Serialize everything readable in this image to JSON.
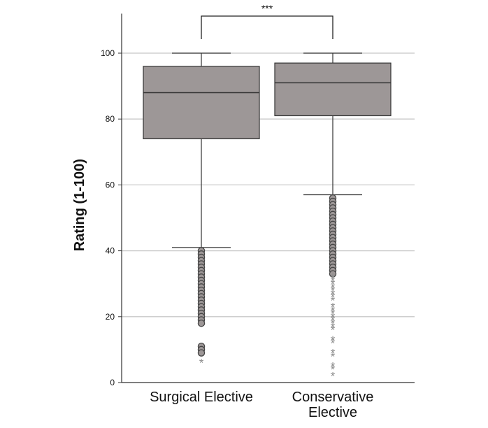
{
  "chart_data": {
    "type": "box",
    "title": "",
    "xlabel": "",
    "ylabel": "Rating (1-100)",
    "ylim": [
      0,
      112
    ],
    "yticks": [
      0,
      20,
      40,
      60,
      80,
      100
    ],
    "grid": {
      "horizontal": true,
      "vertical": false
    },
    "categories": [
      "Surgical Elective",
      "Conservative Elective"
    ],
    "category_labels": [
      [
        "Surgical Elective"
      ],
      [
        "Conservative",
        "Elective"
      ]
    ],
    "box_color": "#9d9797",
    "outlier_color": "#9d9797",
    "extreme_color": "#8c8c8c",
    "boxes": [
      {
        "category": "Surgical Elective",
        "whisker_low": 41,
        "q1": 74,
        "median": 88,
        "q3": 96,
        "whisker_high": 100,
        "outliers": [
          40,
          39,
          38,
          37,
          36,
          35,
          34,
          33,
          32,
          31,
          30,
          29,
          28,
          27,
          26,
          25,
          24,
          23,
          22,
          21,
          20,
          19,
          18,
          11,
          10,
          9
        ],
        "extremes": [
          6
        ]
      },
      {
        "category": "Conservative Elective",
        "whisker_low": 57,
        "q1": 81,
        "median": 91,
        "q3": 97,
        "whisker_high": 100,
        "outliers": [
          56,
          55,
          54,
          53,
          52,
          51,
          50,
          49,
          48,
          47,
          46,
          45,
          44,
          43,
          42,
          41,
          40,
          39,
          38,
          37,
          36,
          35,
          34,
          33
        ],
        "extremes": [
          32,
          31,
          30,
          29,
          28,
          27,
          26,
          25,
          23,
          22,
          21,
          20,
          19,
          18,
          17,
          16,
          13,
          12,
          9,
          8,
          5,
          4,
          2
        ]
      }
    ],
    "significance": {
      "between": [
        0,
        1
      ],
      "label": "***"
    }
  }
}
